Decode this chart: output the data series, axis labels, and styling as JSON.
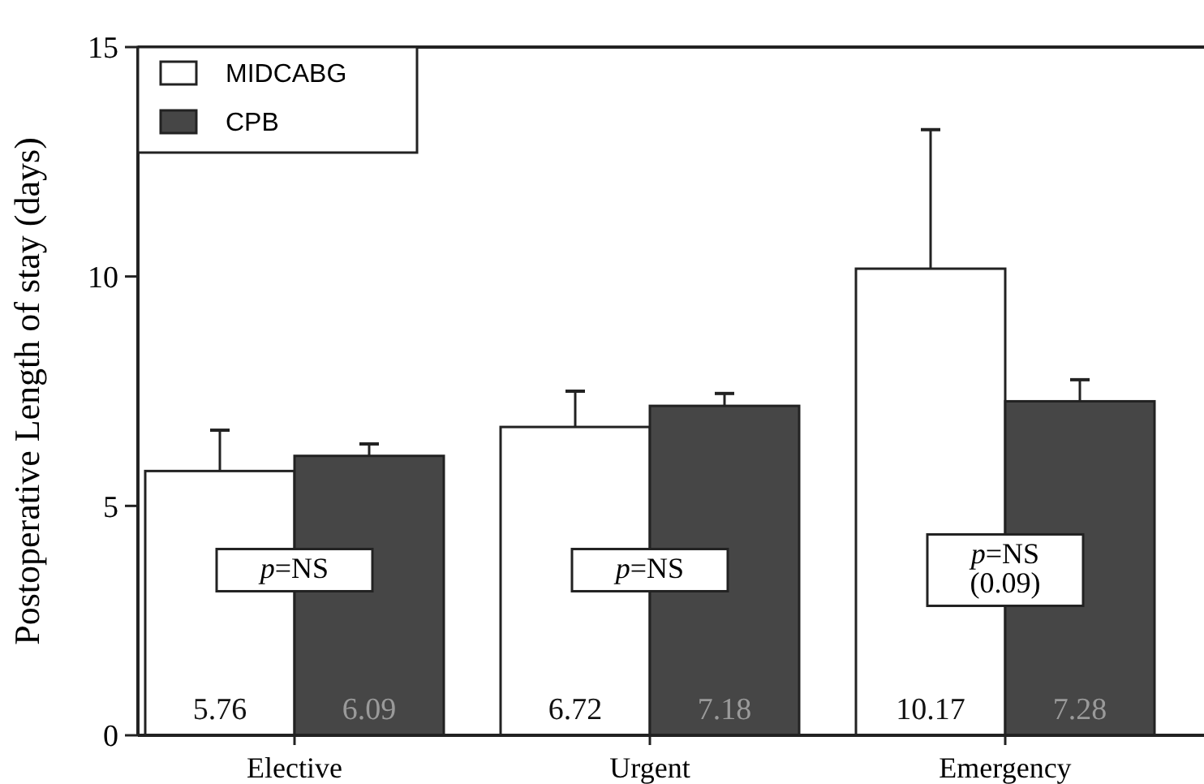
{
  "chart_data": {
    "type": "bar",
    "ylabel": "Postoperative Length of stay (days)",
    "categories": [
      "Elective",
      "Urgent",
      "Emergency"
    ],
    "series": [
      {
        "name": "MIDCABG",
        "color": "#ffffff",
        "values": [
          5.76,
          6.72,
          10.17
        ],
        "errors": [
          [
            5.76,
            6.65
          ],
          [
            6.72,
            7.5
          ],
          [
            10.17,
            13.2
          ]
        ]
      },
      {
        "name": "CPB",
        "color": "#464646",
        "values": [
          6.09,
          7.18,
          7.28
        ],
        "errors": [
          [
            6.09,
            6.35
          ],
          [
            7.18,
            7.45
          ],
          [
            7.28,
            7.75
          ]
        ]
      }
    ],
    "ylim": [
      0,
      15
    ],
    "yticks": [
      0,
      5,
      10,
      15
    ],
    "data_labels": true,
    "legend": "top left",
    "grid": false,
    "annotations": [
      {
        "text": "p=NS",
        "x": "Elective",
        "y": 3.6
      },
      {
        "text": "p=NS",
        "x": "Urgent",
        "y": 3.6
      },
      {
        "text": "p=NS\n(0.09)",
        "x": "Emergency",
        "y": 3.6
      }
    ]
  }
}
